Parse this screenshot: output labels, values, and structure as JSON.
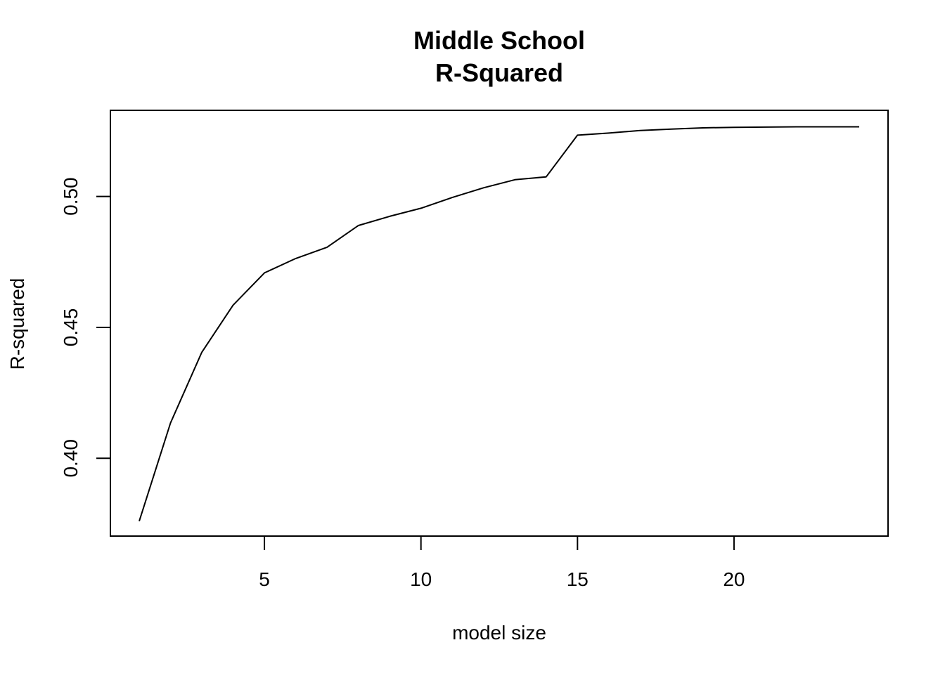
{
  "chart_data": {
    "type": "line",
    "title": "Middle School",
    "subtitle": "R-Squared",
    "xlabel": "model size",
    "ylabel": "R-squared",
    "xlim": [
      0.08,
      24.92
    ],
    "ylim": [
      0.3703,
      0.5329
    ],
    "x_ticks": [
      5,
      10,
      15,
      20
    ],
    "x_tick_labels": [
      "5",
      "10",
      "15",
      "20"
    ],
    "y_ticks": [
      0.4,
      0.45,
      0.5
    ],
    "y_tick_labels": [
      "0.40",
      "0.45",
      "0.50"
    ],
    "grid": false,
    "series": [
      {
        "color": "#000000",
        "x": [
          1,
          2,
          3,
          4,
          5,
          6,
          7,
          8,
          9,
          10,
          11,
          12,
          13,
          14,
          15,
          16,
          17,
          18,
          19,
          20,
          21,
          22,
          23,
          24
        ],
        "y": [
          0.376,
          0.4135,
          0.4405,
          0.4585,
          0.4708,
          0.4763,
          0.4806,
          0.4889,
          0.4924,
          0.4955,
          0.4996,
          0.5033,
          0.5064,
          0.5075,
          0.5234,
          0.5242,
          0.5252,
          0.5257,
          0.5262,
          0.5264,
          0.5265,
          0.5266,
          0.5266,
          0.5266
        ]
      }
    ]
  }
}
